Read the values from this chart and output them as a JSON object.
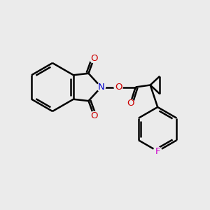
{
  "bg_color": "#ebebeb",
  "bond_color": "#000000",
  "N_color": "#0000cc",
  "O_color": "#cc0000",
  "F_color": "#cc00cc",
  "bond_width": 1.8,
  "figsize": [
    3.0,
    3.0
  ],
  "dpi": 100,
  "xlim": [
    0,
    10
  ],
  "ylim": [
    0,
    10
  ]
}
